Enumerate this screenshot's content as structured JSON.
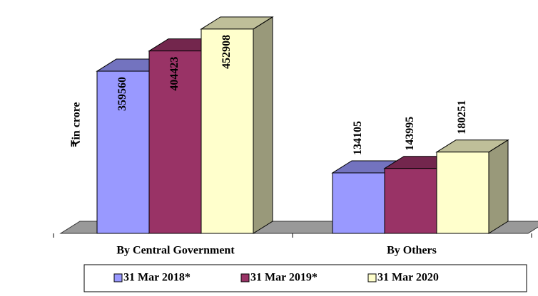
{
  "chart_data": {
    "type": "bar3d",
    "y_label": "₹in crore",
    "categories": [
      "By Central Government",
      "By Others"
    ],
    "series": [
      {
        "name": "31 Mar 2018*",
        "color": "#9999ff",
        "values": [
          359560,
          134105
        ]
      },
      {
        "name": "31 Mar 2019*",
        "color": "#993366",
        "values": [
          404423,
          143995
        ]
      },
      {
        "name": "31 Mar 2020",
        "color": "#ffffcc",
        "values": [
          452908,
          180251
        ]
      }
    ],
    "ylim": [
      0,
      500000
    ],
    "legend": "bottom"
  }
}
